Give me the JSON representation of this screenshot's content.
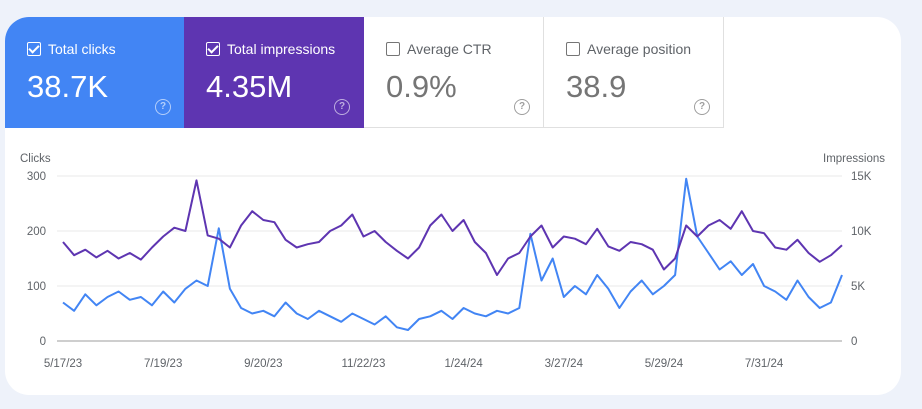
{
  "metrics": [
    {
      "label": "Total clicks",
      "value": "38.7K",
      "checked": true,
      "color": "#4285f4"
    },
    {
      "label": "Total impressions",
      "value": "4.35M",
      "checked": true,
      "color": "#5e35b1"
    },
    {
      "label": "Average CTR",
      "value": "0.9%",
      "checked": false
    },
    {
      "label": "Average position",
      "value": "38.9",
      "checked": false
    }
  ],
  "help_glyph": "?",
  "chart_data": {
    "type": "line",
    "ylabel_left": "Clicks",
    "ylabel_right": "Impressions",
    "ylim_left": [
      0,
      300
    ],
    "ylim_right": [
      0,
      15000
    ],
    "yticks_left": [
      "0",
      "100",
      "200",
      "300"
    ],
    "yticks_right": [
      "0",
      "5K",
      "10K",
      "15K"
    ],
    "xticks": [
      "5/17/23",
      "7/19/23",
      "9/20/23",
      "11/22/23",
      "1/24/24",
      "3/27/24",
      "5/29/24",
      "7/31/24"
    ],
    "xtick_dates": [
      "2023-05-17",
      "2023-07-19",
      "2023-09-20",
      "2023-11-22",
      "2024-01-24",
      "2024-03-27",
      "2024-05-29",
      "2024-07-31"
    ],
    "grid": true,
    "x": [
      "2023-05-17",
      "2023-05-24",
      "2023-05-31",
      "2023-06-07",
      "2023-06-14",
      "2023-06-21",
      "2023-06-28",
      "2023-07-05",
      "2023-07-12",
      "2023-07-19",
      "2023-07-26",
      "2023-08-02",
      "2023-08-09",
      "2023-08-16",
      "2023-08-23",
      "2023-08-30",
      "2023-09-06",
      "2023-09-13",
      "2023-09-20",
      "2023-09-27",
      "2023-10-04",
      "2023-10-11",
      "2023-10-18",
      "2023-10-25",
      "2023-11-01",
      "2023-11-08",
      "2023-11-15",
      "2023-11-22",
      "2023-11-29",
      "2023-12-06",
      "2023-12-13",
      "2023-12-20",
      "2023-12-27",
      "2024-01-03",
      "2024-01-10",
      "2024-01-17",
      "2024-01-24",
      "2024-01-31",
      "2024-02-07",
      "2024-02-14",
      "2024-02-21",
      "2024-02-28",
      "2024-03-06",
      "2024-03-13",
      "2024-03-20",
      "2024-03-27",
      "2024-04-03",
      "2024-04-10",
      "2024-04-17",
      "2024-04-24",
      "2024-05-01",
      "2024-05-08",
      "2024-05-15",
      "2024-05-22",
      "2024-05-29",
      "2024-06-05",
      "2024-06-12",
      "2024-06-19",
      "2024-06-26",
      "2024-07-03",
      "2024-07-10",
      "2024-07-17",
      "2024-07-24",
      "2024-07-31",
      "2024-08-07",
      "2024-08-14",
      "2024-08-21",
      "2024-08-28",
      "2024-09-04",
      "2024-09-11",
      "2024-09-18"
    ],
    "series": [
      {
        "name": "Clicks",
        "axis": "left",
        "color": "#4285f4",
        "values": [
          70,
          55,
          85,
          65,
          80,
          90,
          75,
          80,
          65,
          90,
          70,
          95,
          110,
          100,
          205,
          95,
          60,
          50,
          55,
          45,
          70,
          50,
          40,
          55,
          45,
          35,
          50,
          40,
          30,
          45,
          25,
          20,
          40,
          45,
          55,
          40,
          60,
          50,
          45,
          55,
          50,
          60,
          195,
          110,
          150,
          80,
          100,
          85,
          120,
          95,
          60,
          90,
          110,
          85,
          100,
          120,
          295,
          190,
          160,
          130,
          145,
          120,
          140,
          100,
          90,
          75,
          110,
          80,
          60,
          70,
          120
        ]
      },
      {
        "name": "Impressions",
        "axis": "right",
        "color": "#5e35b1",
        "values": [
          9000,
          7800,
          8300,
          7600,
          8200,
          7500,
          8000,
          7400,
          8500,
          9500,
          10300,
          10000,
          14600,
          9600,
          9300,
          8500,
          10500,
          11800,
          11000,
          10800,
          9200,
          8500,
          8800,
          9000,
          10000,
          10500,
          11500,
          9500,
          10000,
          9000,
          8200,
          7500,
          8500,
          10500,
          11500,
          10000,
          11000,
          9000,
          8000,
          6000,
          7500,
          8000,
          9500,
          10500,
          8500,
          9500,
          9300,
          8800,
          10200,
          8600,
          8200,
          9000,
          8800,
          8300,
          6500,
          7500,
          10500,
          9500,
          10500,
          11000,
          10200,
          11800,
          10000,
          9800,
          8500,
          8300,
          9200,
          8000,
          7200,
          7800,
          8700
        ]
      }
    ]
  }
}
